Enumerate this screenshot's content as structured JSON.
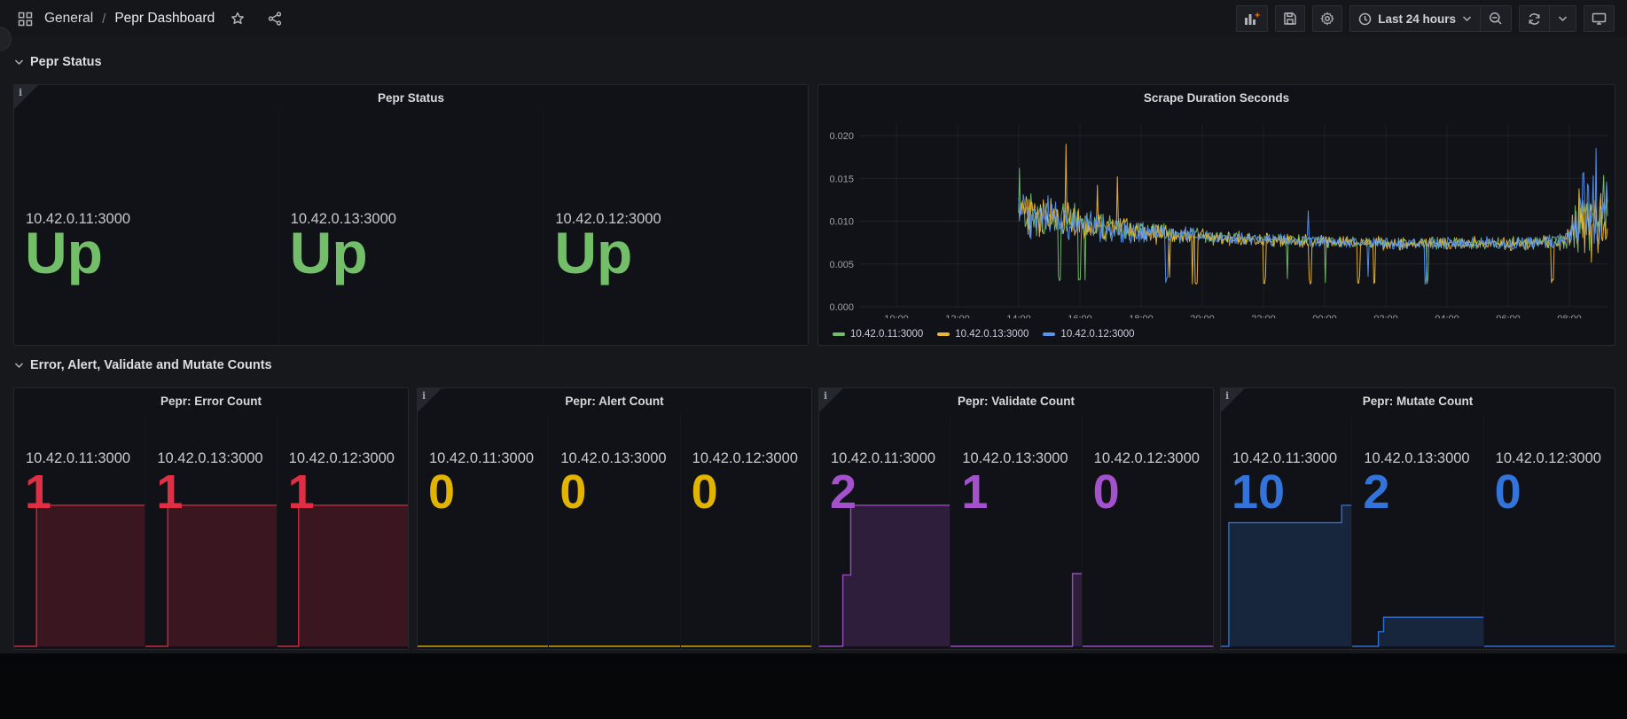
{
  "nav": {
    "breadcrumb_section": "General",
    "breadcrumb_sep": "/",
    "breadcrumb_page": "Pepr Dashboard",
    "time_label": "Last 24 hours",
    "icons": [
      "apps-grid",
      "star",
      "share",
      "add-panel",
      "save",
      "gear",
      "clock",
      "chevron-down",
      "zoom-out",
      "refresh",
      "tv-monitor"
    ]
  },
  "sections": [
    {
      "title": "Pepr Status"
    },
    {
      "title": "Error, Alert, Validate and Mutate Counts"
    }
  ],
  "status_panel": {
    "title": "Pepr Status",
    "has_info_corner": true,
    "value_color": "#73BF69",
    "stats": [
      {
        "label": "10.42.0.11:3000",
        "value": "Up"
      },
      {
        "label": "10.42.0.13:3000",
        "value": "Up"
      },
      {
        "label": "10.42.0.12:3000",
        "value": "Up"
      }
    ]
  },
  "scrape_panel": {
    "title": "Scrape Duration Seconds",
    "has_info_corner": false,
    "chart_data": {
      "type": "line",
      "title": "Scrape Duration Seconds",
      "ylabel": "",
      "xlabel": "",
      "ylim": [
        0,
        0.02
      ],
      "yticks": [
        0,
        0.005,
        0.01,
        0.015,
        0.02
      ],
      "ytick_labels": [
        "0.000",
        "0.005",
        "0.010",
        "0.015",
        "0.020"
      ],
      "xtick_labels": [
        "10:00",
        "12:00",
        "14:00",
        "16:00",
        "18:00",
        "20:00",
        "22:00",
        "00:00",
        "02:00",
        "04:00",
        "06:00",
        "08:00"
      ],
      "grid": true,
      "legend_position": "bottom",
      "data_start_frac": 0.213,
      "baseline_keypoints": [
        [
          0.213,
          0.0108
        ],
        [
          0.27,
          0.0102
        ],
        [
          0.33,
          0.0092
        ],
        [
          0.42,
          0.0084
        ],
        [
          0.55,
          0.0078
        ],
        [
          0.72,
          0.0074
        ],
        [
          0.9,
          0.0074
        ],
        [
          0.945,
          0.0078
        ],
        [
          0.965,
          0.0105
        ],
        [
          1.0,
          0.0108
        ]
      ],
      "noise_amp_keypoints": [
        [
          0.213,
          0.003
        ],
        [
          0.3,
          0.0024
        ],
        [
          0.38,
          0.0014
        ],
        [
          0.5,
          0.0009
        ],
        [
          0.9,
          0.0009
        ],
        [
          0.945,
          0.0012
        ],
        [
          0.965,
          0.0046
        ],
        [
          1.0,
          0.0046
        ]
      ],
      "dip_value": 0.0026,
      "dip_probability": 0.011,
      "clamp": [
        0.002,
        0.0192
      ],
      "spikes": [
        {
          "series": 0,
          "x": 0.214,
          "v": 0.0162
        },
        {
          "series": 1,
          "x": 0.277,
          "v": 0.019
        },
        {
          "series": 1,
          "x": 0.318,
          "v": 0.0142
        },
        {
          "series": 2,
          "x": 0.252,
          "v": 0.013
        },
        {
          "series": 1,
          "x": 0.345,
          "v": 0.0152
        },
        {
          "series": 2,
          "x": 0.6,
          "v": 0.0112
        },
        {
          "series": 2,
          "x": 0.985,
          "v": 0.0185
        }
      ],
      "series": [
        {
          "name": "10.42.0.11:3000",
          "color": "#73BF69",
          "seed": 1101
        },
        {
          "name": "10.42.0.13:3000",
          "color": "#EAB839",
          "seed": 1303
        },
        {
          "name": "10.42.0.12:3000",
          "color": "#5794F2",
          "seed": 1202
        }
      ]
    }
  },
  "count_panels": [
    {
      "id": "error",
      "title": "Pepr: Error Count",
      "has_info_corner": false,
      "value_color": "#E02F44",
      "line_color": "rgba(224,47,68,0.85)",
      "fill_color": "rgba(224,47,68,0.20)",
      "stats": [
        {
          "label": "10.42.0.11:3000",
          "value": "1",
          "spark": [
            [
              0,
              0
            ],
            [
              0.17,
              0
            ],
            [
              0.17,
              0.97
            ],
            [
              1,
              0.97
            ]
          ]
        },
        {
          "label": "10.42.0.13:3000",
          "value": "1",
          "spark": [
            [
              0,
              0
            ],
            [
              0.17,
              0
            ],
            [
              0.17,
              0.97
            ],
            [
              1,
              0.97
            ]
          ]
        },
        {
          "label": "10.42.0.12:3000",
          "value": "1",
          "spark": [
            [
              0,
              0
            ],
            [
              0.16,
              0
            ],
            [
              0.16,
              0.97
            ],
            [
              1,
              0.97
            ]
          ]
        }
      ]
    },
    {
      "id": "alert",
      "title": "Pepr: Alert Count",
      "has_info_corner": true,
      "value_color": "#E0B400",
      "line_color": "rgba(224,180,0,0.9)",
      "fill_color": "rgba(224,180,0,0.15)",
      "stats": [
        {
          "label": "10.42.0.11:3000",
          "value": "0",
          "spark": [
            [
              0,
              0
            ],
            [
              1,
              0
            ]
          ]
        },
        {
          "label": "10.42.0.13:3000",
          "value": "0",
          "spark": [
            [
              0,
              0
            ],
            [
              1,
              0
            ]
          ]
        },
        {
          "label": "10.42.0.12:3000",
          "value": "0",
          "spark": [
            [
              0,
              0
            ],
            [
              1,
              0
            ]
          ]
        }
      ]
    },
    {
      "id": "validate",
      "title": "Pepr: Validate Count",
      "has_info_corner": true,
      "value_color": "#A352CC",
      "line_color": "rgba(163,82,204,0.9)",
      "fill_color": "rgba(163,82,204,0.20)",
      "stats": [
        {
          "label": "10.42.0.11:3000",
          "value": "2",
          "spark": [
            [
              0,
              0
            ],
            [
              0.18,
              0
            ],
            [
              0.18,
              0.49
            ],
            [
              0.24,
              0.49
            ],
            [
              0.24,
              0.97
            ],
            [
              1,
              0.97
            ]
          ]
        },
        {
          "label": "10.42.0.13:3000",
          "value": "1",
          "spark": [
            [
              0,
              0
            ],
            [
              0.93,
              0
            ],
            [
              0.93,
              0.5
            ],
            [
              1,
              0.5
            ]
          ]
        },
        {
          "label": "10.42.0.12:3000",
          "value": "0",
          "spark": [
            [
              0,
              0
            ],
            [
              1,
              0
            ]
          ]
        }
      ]
    },
    {
      "id": "mutate",
      "title": "Pepr: Mutate Count",
      "has_info_corner": true,
      "value_color": "#3274D9",
      "line_color": "rgba(50,116,217,0.95)",
      "fill_color": "rgba(50,116,217,0.20)",
      "stats": [
        {
          "label": "10.42.0.11:3000",
          "value": "10",
          "spark": [
            [
              0,
              0
            ],
            [
              0.06,
              0
            ],
            [
              0.06,
              0.85
            ],
            [
              0.92,
              0.85
            ],
            [
              0.92,
              0.97
            ],
            [
              1,
              0.97
            ]
          ]
        },
        {
          "label": "10.42.0.13:3000",
          "value": "2",
          "spark": [
            [
              0,
              0
            ],
            [
              0.2,
              0
            ],
            [
              0.2,
              0.1
            ],
            [
              0.24,
              0.1
            ],
            [
              0.24,
              0.2
            ],
            [
              1,
              0.2
            ]
          ]
        },
        {
          "label": "10.42.0.12:3000",
          "value": "0",
          "spark": [
            [
              0,
              0
            ],
            [
              1,
              0
            ]
          ]
        }
      ]
    }
  ]
}
